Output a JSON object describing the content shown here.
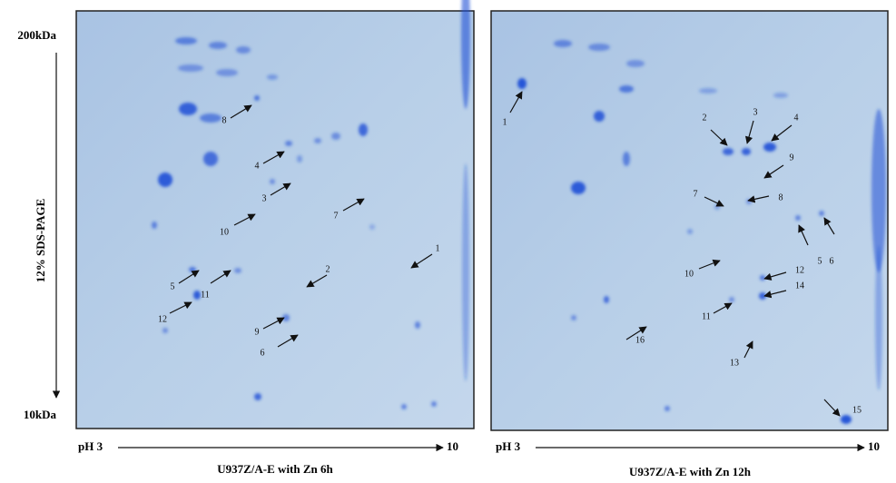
{
  "y_axis": {
    "top": "200kDa",
    "bottom": "10kDa",
    "label": "12% SDS-PAGE"
  },
  "panels": [
    {
      "x_axis": {
        "left": "pH 3",
        "right": "10"
      },
      "caption": "U937Z/A-E with Zn 6h",
      "annotations": [
        "8",
        "4",
        "3",
        "10",
        "7",
        "1",
        "2",
        "5",
        "11",
        "12",
        "9",
        "6"
      ]
    },
    {
      "x_axis": {
        "left": "pH 3",
        "right": "10"
      },
      "caption": "U937Z/A-E with Zn 12h",
      "annotations": [
        "1",
        "2",
        "3",
        "4",
        "9",
        "7",
        "8",
        "5",
        "6",
        "10",
        "12",
        "14",
        "11",
        "16",
        "13",
        "15"
      ]
    }
  ]
}
